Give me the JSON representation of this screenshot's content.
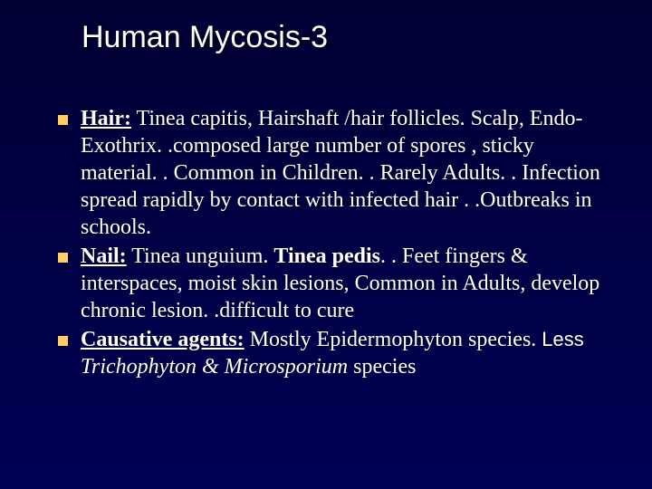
{
  "slide": {
    "title": "Human Mycosis-3",
    "background_gradient": [
      "#000033",
      "#000044",
      "#000055"
    ],
    "title_color": "#ffffff",
    "title_fontsize": 34,
    "bullet_marker_color": "#ffcc66",
    "text_color": "#ffffff",
    "body_fontsize": 24,
    "bullets": [
      {
        "heading": "Hair:",
        "body": " Tinea capitis, Hairshaft /hair follicles. Scalp, Endo-Exothrix. .composed large number of spores , sticky material. . Common in Children. . Rarely Adults. . Infection spread rapidly by contact with infected  hair . .Outbreaks in schools."
      },
      {
        "heading": "Nail:",
        "body_pre": " Tinea unguium. ",
        "bold_part": "Tinea pedis",
        "body_post": ". . Feet fingers & interspaces, moist skin lesions, Common in Adults, develop chronic  lesion. .difficult to cure"
      },
      {
        "heading": "Causative agents:",
        "body_pre": " Mostly Epidermophyton species. ",
        "sans_part": "Less ",
        "ital_part": "Trichophyton & Microsporium ",
        "body_post": "species"
      }
    ]
  }
}
